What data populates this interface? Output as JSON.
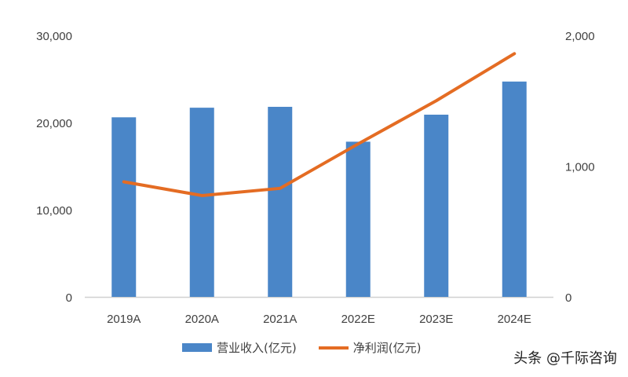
{
  "chart_data": {
    "type": "bar+line",
    "categories": [
      "2019A",
      "2020A",
      "2021A",
      "2022E",
      "2023E",
      "2024E"
    ],
    "series": [
      {
        "name": "营业收入(亿元)",
        "type": "bar",
        "axis": "left",
        "color": "#4a86c8",
        "values": [
          20600,
          21700,
          21800,
          17800,
          20900,
          24700
        ]
      },
      {
        "name": "净利润(亿元)",
        "type": "line",
        "axis": "right",
        "color": "#e46c23",
        "values": [
          880,
          775,
          830,
          1170,
          1500,
          1860
        ]
      }
    ],
    "y_left": {
      "ylim": [
        0,
        30000
      ],
      "ticks": [
        "0",
        "10,000",
        "20,000",
        "30,000"
      ]
    },
    "y_right": {
      "ylim": [
        0,
        2000
      ],
      "ticks": [
        "0",
        "1,000",
        "2,000"
      ]
    },
    "grid": false,
    "legend_position": "bottom"
  },
  "footer": {
    "source": "头条 @千际咨询"
  }
}
